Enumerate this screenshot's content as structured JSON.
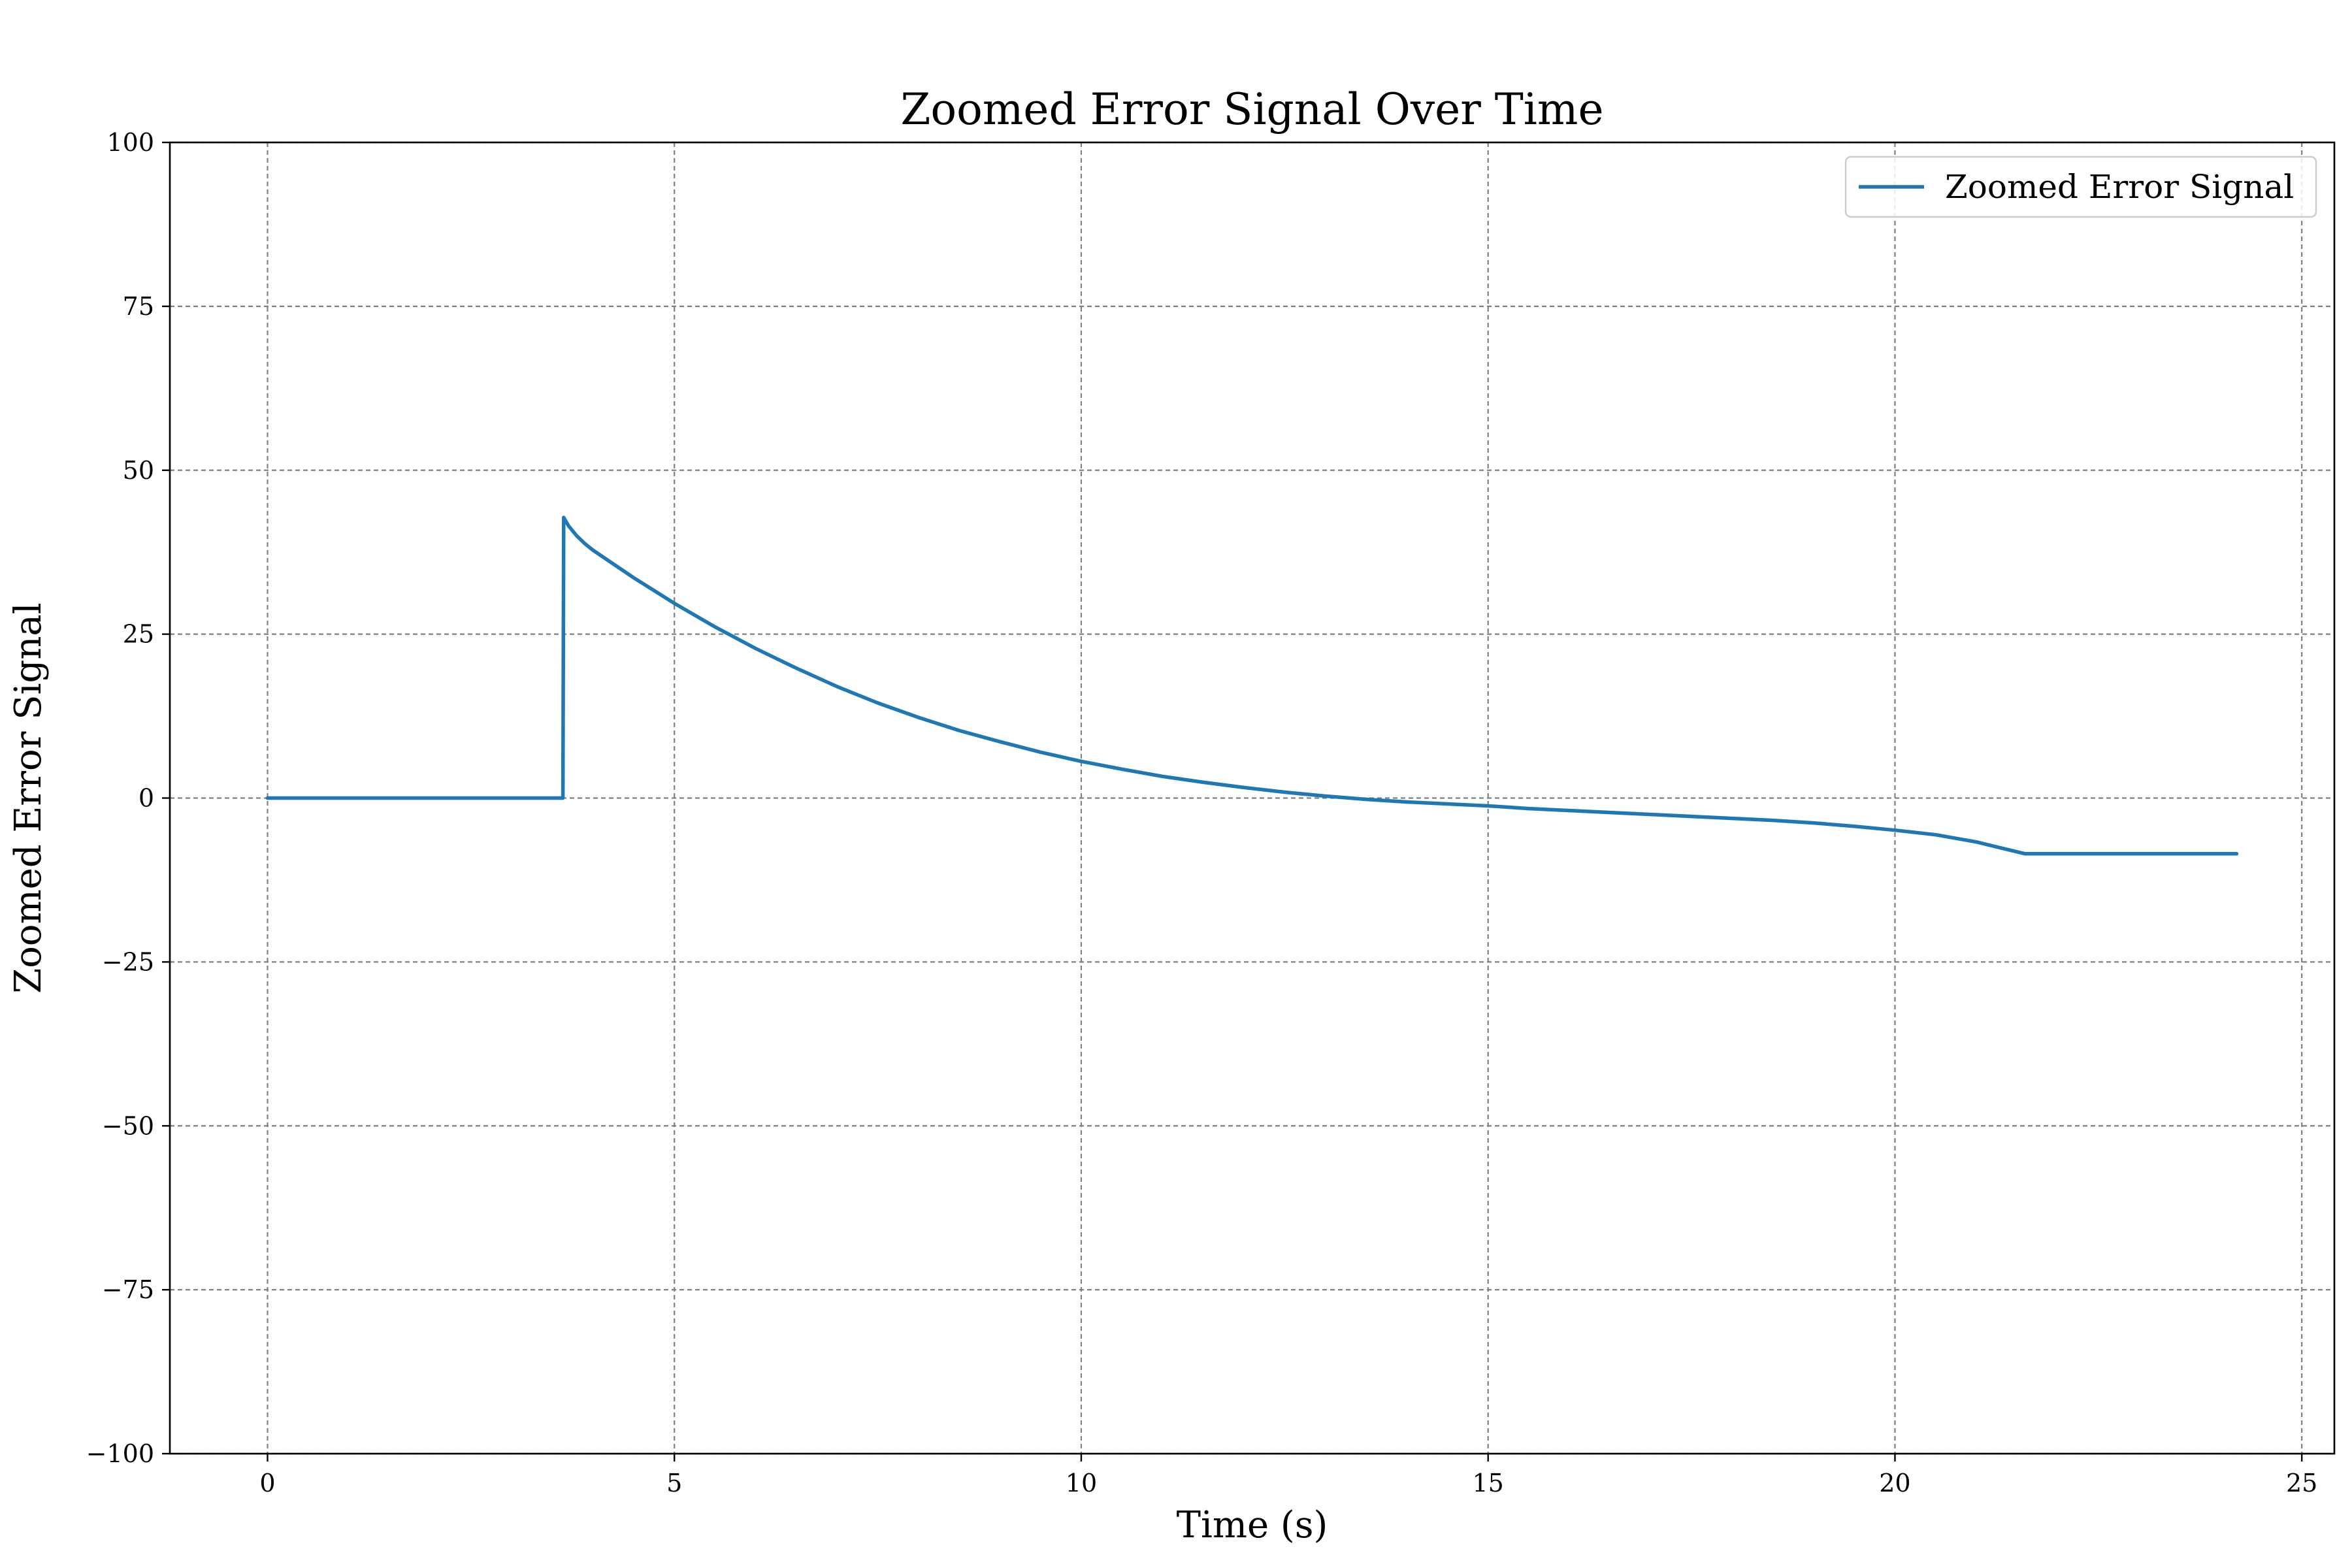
{
  "chart_data": {
    "type": "line",
    "title": "Zoomed Error Signal Over Time",
    "xlabel": "Time (s)",
    "ylabel": "Zoomed Error Signal",
    "xlim": [
      -1.2,
      25.4
    ],
    "ylim": [
      -100,
      100
    ],
    "xticks": [
      0,
      5,
      10,
      15,
      20,
      25
    ],
    "yticks": [
      -100,
      -75,
      -50,
      -25,
      0,
      25,
      50,
      75,
      100
    ],
    "xtick_labels": [
      "0",
      "5",
      "10",
      "15",
      "20",
      "25"
    ],
    "ytick_labels": [
      "−100",
      "−75",
      "−50",
      "−25",
      "0",
      "25",
      "50",
      "75",
      "100"
    ],
    "grid": true,
    "legend_position": "top-right",
    "series": [
      {
        "name": "Zoomed Error Signal",
        "color": "#1f77b4",
        "x": [
          0,
          3.63,
          3.64,
          3.7,
          3.8,
          3.9,
          4.0,
          4.5,
          5.0,
          5.5,
          6.0,
          6.5,
          7.0,
          7.5,
          8.0,
          8.5,
          9.0,
          9.5,
          10.0,
          10.5,
          11.0,
          11.5,
          12.0,
          12.5,
          13.0,
          13.5,
          14.0,
          14.5,
          15.0,
          15.5,
          16.0,
          16.5,
          17.0,
          17.5,
          18.0,
          18.5,
          19.0,
          19.5,
          20.0,
          20.5,
          21.0,
          21.3,
          21.6,
          22.0,
          23.0,
          24.2
        ],
        "y": [
          0,
          0,
          42.8,
          41.5,
          40.0,
          38.8,
          37.8,
          33.6,
          29.7,
          26.1,
          22.8,
          19.8,
          17.0,
          14.5,
          12.3,
          10.3,
          8.6,
          7.0,
          5.6,
          4.4,
          3.3,
          2.4,
          1.6,
          0.9,
          0.3,
          -0.2,
          -0.6,
          -0.9,
          -1.2,
          -1.6,
          -1.9,
          -2.2,
          -2.5,
          -2.8,
          -3.1,
          -3.4,
          -3.8,
          -4.3,
          -4.9,
          -5.6,
          -6.7,
          -7.6,
          -8.5,
          -8.5,
          -8.5,
          -8.5
        ]
      }
    ]
  }
}
